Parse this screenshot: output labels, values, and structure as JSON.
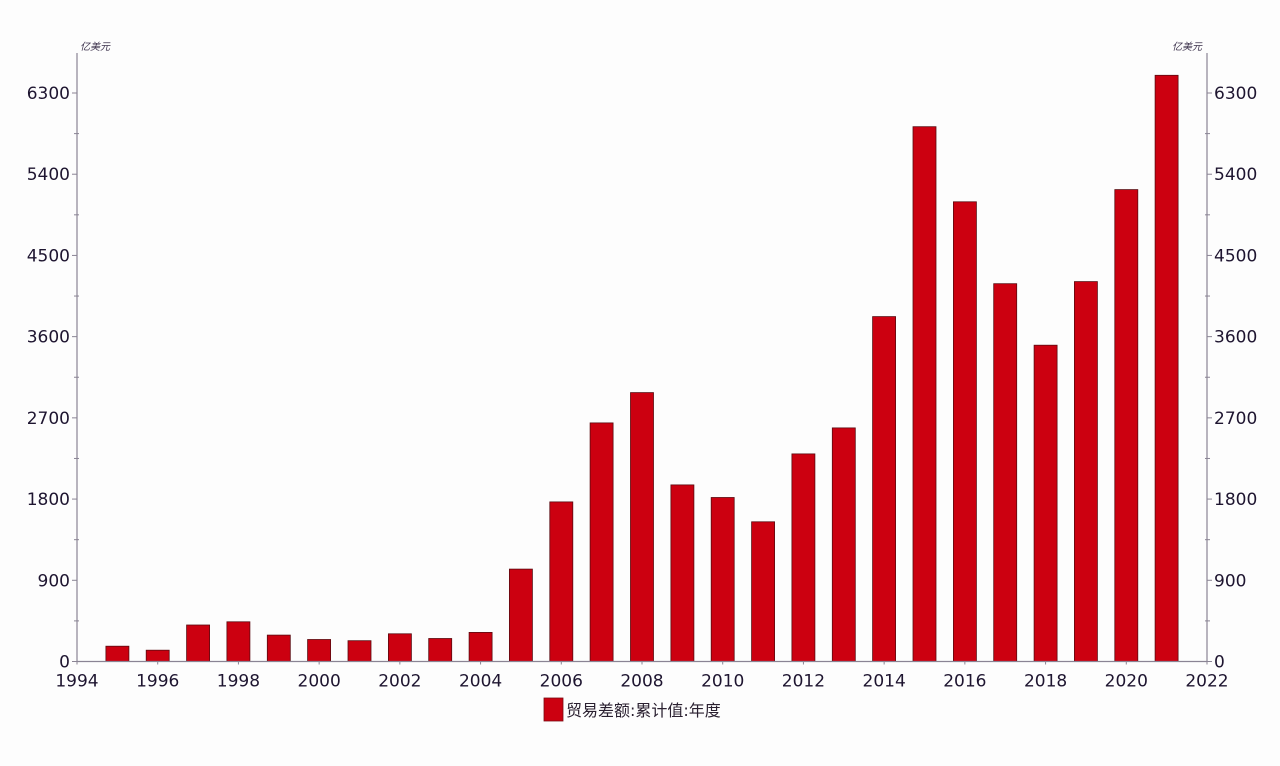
{
  "chart_data": {
    "type": "bar",
    "title": "",
    "xlabel": "",
    "ylabel": "亿美元",
    "ylabel_right": "亿美元",
    "unit": "亿美元",
    "categories": [
      "1995",
      "1996",
      "1997",
      "1998",
      "1999",
      "2000",
      "2001",
      "2002",
      "2003",
      "2004",
      "2005",
      "2006",
      "2007",
      "2008",
      "2009",
      "2010",
      "2011",
      "2012",
      "2013",
      "2014",
      "2015",
      "2016",
      "2017",
      "2018",
      "2019",
      "2020",
      "2021"
    ],
    "series": [
      {
        "name": "贸易差额:累计值:年度",
        "color": "#cc0010",
        "values": [
          170,
          125,
          404,
          440,
          293,
          244,
          230,
          307,
          255,
          322,
          1024,
          1769,
          2644,
          2980,
          1957,
          1817,
          1548,
          2301,
          2589,
          3822,
          5927,
          5094,
          4187,
          3505,
          4210,
          5229,
          6496
        ]
      }
    ],
    "xlim": [
      1994,
      2022
    ],
    "ylim": [
      0,
      6300
    ],
    "x_ticks": [
      "1994",
      "1996",
      "1998",
      "2000",
      "2002",
      "2004",
      "2006",
      "2008",
      "2010",
      "2012",
      "2014",
      "2016",
      "2018",
      "2020",
      "2022"
    ],
    "y_ticks": [
      "0",
      "900",
      "1800",
      "2700",
      "3600",
      "4500",
      "5400",
      "6300"
    ],
    "dual_y_axis": true,
    "grid": false,
    "legend_position": "bottom-center"
  },
  "legend": {
    "label": "贸易差额:累计值:年度"
  }
}
